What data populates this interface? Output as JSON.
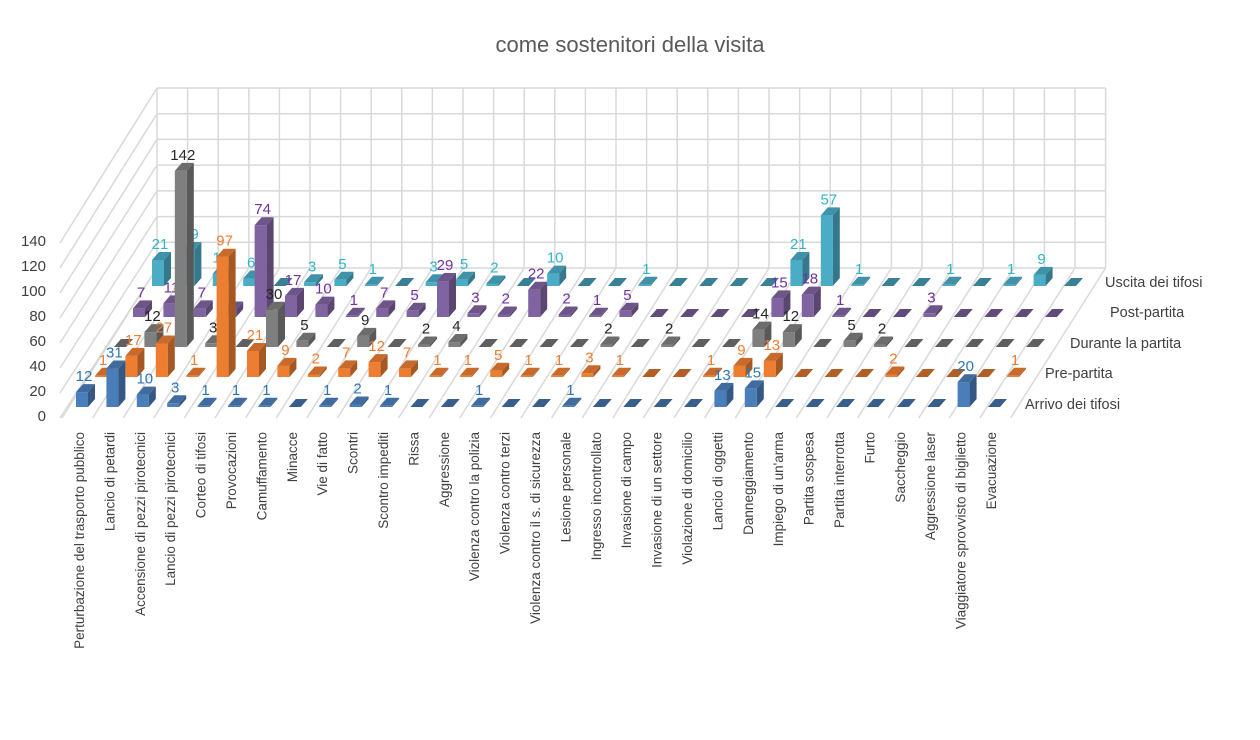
{
  "chart_data": {
    "type": "bar",
    "subtype": "3d-column",
    "title": "come sostenitori della visita",
    "xlabel": "",
    "ylabel": "",
    "ylim": [
      0,
      140
    ],
    "y_ticks": [
      "0",
      "20",
      "40",
      "60",
      "80",
      "100",
      "120",
      "140"
    ],
    "grid": true,
    "legend": "right (series labels along depth axis)",
    "categories": [
      "Perturbazione del trasporto pubblico",
      "Lancio di petardi",
      "Accensione di pezzi pirotecnici",
      "Lancio di pezzi pirotecnici",
      "Corteo di tifosi",
      "Provocazioni",
      "Camuffamento",
      "Minacce",
      "Vie di fatto",
      "Scontri",
      "Scontro impediti",
      "Rissa",
      "Aggressione",
      "Violenza contro la polizia",
      "Violenza contro terzi",
      "Violenza contro il s. di sicurezza",
      "Lesione personale",
      "Ingresso incontrollato",
      "Invasione di campo",
      "Invasione di un settore",
      "Violazione di domicilio",
      "Lancio di oggetti",
      "Danneggiamento",
      "Impiego di un'arma",
      "Partita sospesa",
      "Partita interrotta",
      "Furto",
      "Saccheggio",
      "Aggressione laser",
      "Viaggiatore sprovvisto di biglietto",
      "Evacuazione"
    ],
    "series": [
      {
        "name": "Arrivo dei tifosi",
        "color": "#4a7ebb",
        "label_color": "#2e75b6",
        "values": [
          12,
          31,
          10,
          3,
          1,
          1,
          1,
          0,
          1,
          2,
          1,
          0,
          0,
          1,
          0,
          0,
          1,
          0,
          0,
          0,
          0,
          13,
          15,
          0,
          0,
          0,
          0,
          0,
          0,
          20,
          0
        ]
      },
      {
        "name": "Pre-partita",
        "color": "#ed7d31",
        "label_color": "#ed7d31",
        "values": [
          1,
          17,
          27,
          1,
          97,
          21,
          9,
          2,
          7,
          12,
          7,
          1,
          1,
          5,
          1,
          1,
          3,
          1,
          0,
          0,
          1,
          9,
          13,
          0,
          0,
          0,
          2,
          0,
          0,
          0,
          1
        ]
      },
      {
        "name": "Durante la partita",
        "color": "#7f7f7f",
        "label_color": "#262626",
        "values": [
          0,
          12,
          142,
          3,
          0,
          30,
          5,
          0,
          9,
          0,
          2,
          4,
          0,
          0,
          0,
          0,
          2,
          0,
          2,
          0,
          0,
          14,
          12,
          0,
          5,
          2,
          0,
          0,
          0,
          0,
          0
        ]
      },
      {
        "name": "Post-partita",
        "color": "#8064a2",
        "label_color": "#7030a0",
        "values": [
          7,
          11,
          7,
          6,
          74,
          17,
          10,
          1,
          7,
          5,
          29,
          3,
          2,
          22,
          2,
          1,
          5,
          0,
          0,
          0,
          0,
          15,
          18,
          1,
          0,
          0,
          3,
          0,
          0,
          0,
          0
        ]
      },
      {
        "name": "Uscita dei tifosi",
        "color": "#4bacc6",
        "label_color": "#2fb5c8",
        "values": [
          21,
          29,
          10,
          6,
          0,
          3,
          5,
          1,
          0,
          3,
          5,
          2,
          0,
          10,
          0,
          0,
          1,
          0,
          0,
          0,
          0,
          21,
          57,
          1,
          0,
          0,
          1,
          0,
          1,
          9,
          0
        ]
      }
    ]
  }
}
